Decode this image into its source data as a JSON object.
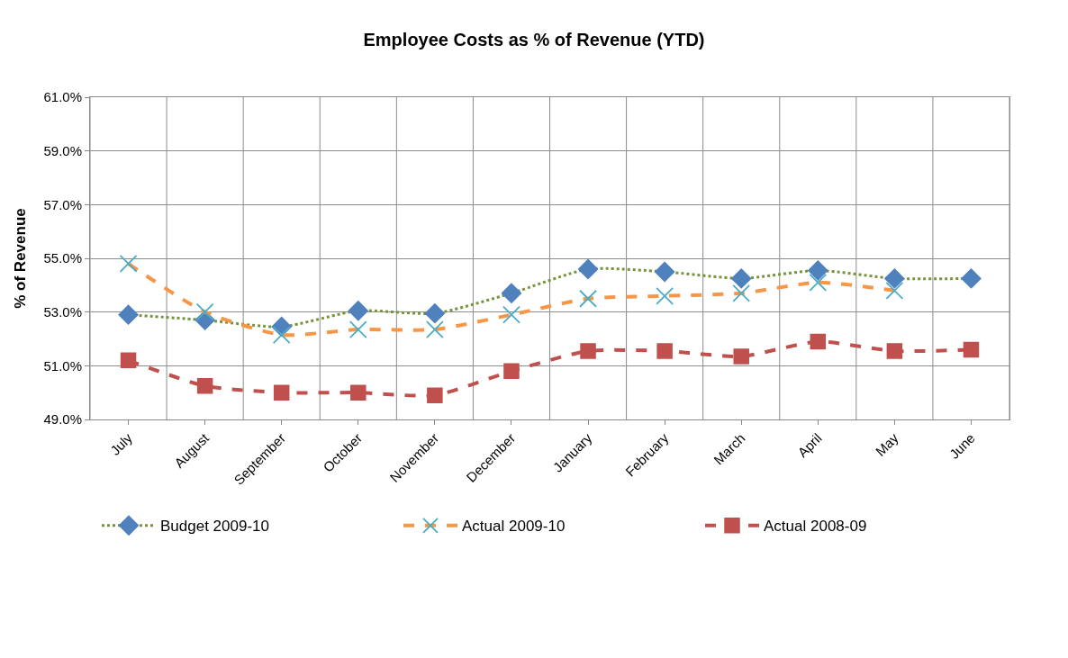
{
  "chart_data": {
    "type": "line",
    "title": "Employee Costs as % of Revenue (YTD)",
    "ylabel": "% of Revenue",
    "categories": [
      "July",
      "August",
      "September",
      "October",
      "November",
      "December",
      "January",
      "February",
      "March",
      "April",
      "May",
      "June"
    ],
    "series": [
      {
        "name": "Budget 2009-10",
        "color": "#77933c",
        "colors": [
          "#4f81bd",
          "#4f81bd",
          "#4f81bd",
          "#4f81bd",
          "#4f81bd",
          "#4f81bd",
          "#4f81bd",
          "#4f81bd",
          "#4f81bd",
          "#4f81bd",
          "#4f81bd",
          "#4f81bd"
        ],
        "marker": "diamond",
        "line_style": "dotted",
        "values": [
          52.9,
          52.7,
          52.45,
          53.05,
          52.95,
          53.7,
          54.6,
          54.5,
          54.25,
          54.55,
          54.25,
          54.25
        ]
      },
      {
        "name": "Actual 2009-10",
        "color": "#f79646",
        "colors": [
          "#4bacc6",
          "#4bacc6",
          "#4bacc6",
          "#4bacc6",
          "#4bacc6",
          "#4bacc6",
          "#4bacc6",
          "#4bacc6",
          "#4bacc6",
          "#4bacc6",
          "#4bacc6",
          null
        ],
        "marker": "cross",
        "line_style": "dashed",
        "values": [
          54.8,
          53.0,
          52.15,
          52.35,
          52.35,
          52.9,
          53.5,
          53.6,
          53.7,
          54.1,
          53.8,
          null
        ]
      },
      {
        "name": "Actual 2008-09",
        "color": "#c0504d",
        "colors": [
          "#c0504d",
          "#c0504d",
          "#c0504d",
          "#c0504d",
          "#c0504d",
          "#c0504d",
          "#c0504d",
          "#c0504d",
          "#c0504d",
          "#c0504d",
          "#c0504d",
          "#c0504d"
        ],
        "marker": "square",
        "line_style": "dashed",
        "values": [
          51.2,
          50.25,
          50.0,
          50.0,
          49.9,
          50.8,
          51.55,
          51.55,
          51.35,
          51.9,
          51.55,
          51.6
        ]
      }
    ],
    "ylim": [
      49,
      61
    ],
    "yticks": [
      {
        "value": 49,
        "label": "49.0%"
      },
      {
        "value": 51,
        "label": "51.0%"
      },
      {
        "value": 53,
        "label": "53.0%"
      },
      {
        "value": 55,
        "label": "55.0%"
      },
      {
        "value": 57,
        "label": "57.0%"
      },
      {
        "value": 59,
        "label": "59.0%"
      },
      {
        "value": 61,
        "label": "61.0%"
      }
    ],
    "grid": true,
    "legend": "bottom"
  }
}
